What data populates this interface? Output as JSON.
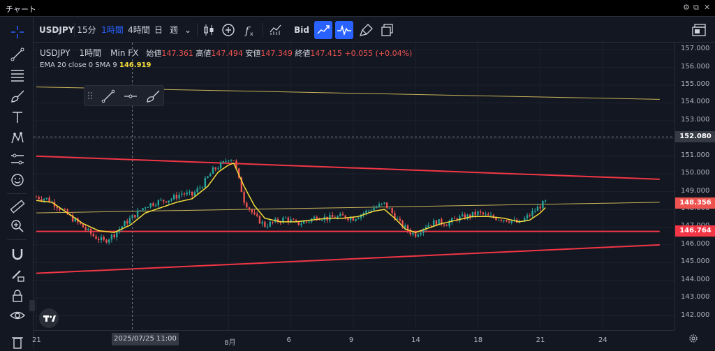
{
  "window": {
    "title": "チャート",
    "controls": [
      "⚙",
      "⧉",
      "✕"
    ]
  },
  "toolbar": {
    "symbol": "USDJPY",
    "intervals": [
      "15分",
      "1時間",
      "4時間",
      "日",
      "週"
    ],
    "active_interval": "1時間",
    "price_type": "Bid"
  },
  "legend": {
    "symbol": "USDJPY",
    "interval": "1時間",
    "source": "Min FX",
    "open_label": "始値",
    "open": "147.361",
    "high_label": "高値",
    "high": "147.494",
    "low_label": "安値",
    "low": "147.349",
    "close_label": "終値",
    "close": "147.415",
    "change": "+0.055 (+0.04%)"
  },
  "indicator": {
    "label": "EMA 20 close 0 SMA 9",
    "value": "146.919"
  },
  "colors": {
    "background": "#131722",
    "up": "#26a69a",
    "down": "#ef5350",
    "ema": "#f5dd3a",
    "accent": "#2962ff",
    "trend_line": "#f23645"
  },
  "chart_data": {
    "type": "line",
    "y_ticks": [
      "157.000",
      "156.000",
      "155.000",
      "154.000",
      "153.000",
      "152.000",
      "151.000",
      "150.000",
      "149.000",
      "148.000",
      "147.000",
      "146.000",
      "145.000",
      "144.000",
      "143.000",
      "142.000"
    ],
    "ylim": [
      141.2,
      157.4
    ],
    "x_ticks": [
      {
        "label": "21",
        "i": 0
      },
      {
        "label": "8月",
        "i": 74
      },
      {
        "label": "6",
        "i": 98
      },
      {
        "label": "9",
        "i": 122
      },
      {
        "label": "14",
        "i": 146
      },
      {
        "label": "18",
        "i": 170
      },
      {
        "label": "21",
        "i": 194
      },
      {
        "label": "24",
        "i": 218
      }
    ],
    "bar_count": 240,
    "price_path": [
      [
        0,
        148.7
      ],
      [
        4,
        148.6
      ],
      [
        8,
        148.2
      ],
      [
        12,
        147.7
      ],
      [
        18,
        147.0
      ],
      [
        22,
        146.5
      ],
      [
        26,
        146.2
      ],
      [
        30,
        146.6
      ],
      [
        34,
        147.2
      ],
      [
        38,
        147.7
      ],
      [
        42,
        148.2
      ],
      [
        46,
        148.4
      ],
      [
        52,
        148.6
      ],
      [
        56,
        148.9
      ],
      [
        60,
        148.8
      ],
      [
        64,
        149.4
      ],
      [
        68,
        150.2
      ],
      [
        72,
        150.6
      ],
      [
        74,
        150.9
      ],
      [
        76,
        150.8
      ],
      [
        80,
        148.5
      ],
      [
        84,
        147.6
      ],
      [
        88,
        147.1
      ],
      [
        92,
        147.3
      ],
      [
        96,
        147.5
      ],
      [
        100,
        147.2
      ],
      [
        104,
        147.3
      ],
      [
        108,
        147.6
      ],
      [
        112,
        147.5
      ],
      [
        118,
        147.6
      ],
      [
        122,
        147.5
      ],
      [
        126,
        147.8
      ],
      [
        130,
        148.1
      ],
      [
        134,
        148.3
      ],
      [
        136,
        148.0
      ],
      [
        140,
        147.2
      ],
      [
        144,
        146.7
      ],
      [
        146,
        146.6
      ],
      [
        150,
        147.1
      ],
      [
        154,
        147.3
      ],
      [
        158,
        147.2
      ],
      [
        162,
        147.5
      ],
      [
        166,
        147.6
      ],
      [
        170,
        147.8
      ],
      [
        174,
        147.6
      ],
      [
        178,
        147.5
      ],
      [
        182,
        147.4
      ],
      [
        186,
        147.2
      ],
      [
        190,
        147.7
      ],
      [
        194,
        148.2
      ],
      [
        196,
        148.4
      ]
    ],
    "ema_path": [
      [
        0,
        148.5
      ],
      [
        6,
        148.4
      ],
      [
        12,
        147.8
      ],
      [
        18,
        147.2
      ],
      [
        24,
        146.8
      ],
      [
        30,
        146.7
      ],
      [
        36,
        147.1
      ],
      [
        42,
        147.8
      ],
      [
        48,
        148.1
      ],
      [
        54,
        148.4
      ],
      [
        60,
        148.6
      ],
      [
        66,
        149.3
      ],
      [
        70,
        150.1
      ],
      [
        74,
        150.5
      ],
      [
        76,
        150.6
      ],
      [
        80,
        149.3
      ],
      [
        84,
        148.2
      ],
      [
        88,
        147.5
      ],
      [
        94,
        147.3
      ],
      [
        100,
        147.3
      ],
      [
        106,
        147.4
      ],
      [
        112,
        147.5
      ],
      [
        118,
        147.5
      ],
      [
        124,
        147.6
      ],
      [
        130,
        147.9
      ],
      [
        134,
        148.0
      ],
      [
        138,
        147.5
      ],
      [
        142,
        146.9
      ],
      [
        146,
        146.7
      ],
      [
        150,
        146.9
      ],
      [
        156,
        147.2
      ],
      [
        162,
        147.4
      ],
      [
        168,
        147.6
      ],
      [
        174,
        147.6
      ],
      [
        180,
        147.5
      ],
      [
        186,
        147.3
      ],
      [
        190,
        147.4
      ],
      [
        194,
        147.8
      ],
      [
        196,
        148.1
      ]
    ],
    "trend_lines": [
      {
        "name": "upper-resistance",
        "color": "#f23645",
        "width": 2,
        "from": [
          0,
          151.0
        ],
        "to": [
          240,
          149.7
        ]
      },
      {
        "name": "lower-support",
        "color": "#f23645",
        "width": 2,
        "from": [
          0,
          144.4
        ],
        "to": [
          240,
          146.0
        ]
      },
      {
        "name": "support-horizontal",
        "color": "#f23645",
        "width": 2,
        "from": [
          0,
          146.76
        ],
        "to": [
          240,
          146.76
        ]
      },
      {
        "name": "upper-channel",
        "color": "#c9b458",
        "width": 1,
        "from": [
          0,
          154.9
        ],
        "to": [
          240,
          154.2
        ]
      },
      {
        "name": "mid-channel",
        "color": "#c9b458",
        "width": 1,
        "from": [
          0,
          147.8
        ],
        "to": [
          240,
          148.4
        ]
      }
    ],
    "price_tags": [
      {
        "name": "crosshair-price-tag",
        "value": 152.08,
        "label": "152.080",
        "bg": "#363a45"
      },
      {
        "name": "last-price-tag",
        "value": 148.356,
        "label": "148.356",
        "bg": "#ef5350"
      },
      {
        "name": "support-price-tag",
        "value": 146.764,
        "label": "146.764",
        "bg": "#f23645"
      }
    ],
    "crosshair": {
      "price": 152.08,
      "bar_index": 37,
      "date_label": "2025/07/25",
      "time_label": "11:00"
    }
  }
}
